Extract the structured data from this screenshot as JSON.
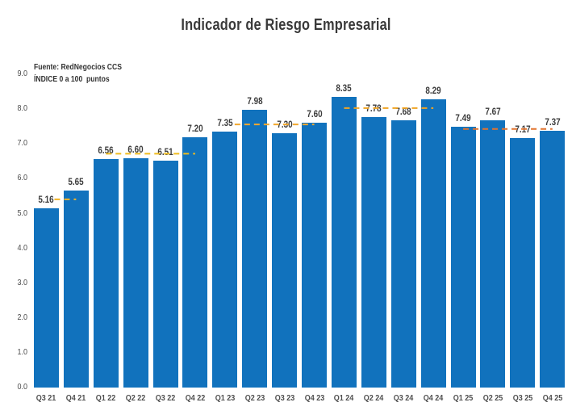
{
  "title": "Indicador de Riesgo Empresarial",
  "source_line1": "Fuente: RedNegocios CCS",
  "source_line2": "ÍNDICE 0 a 100  puntos",
  "colors": {
    "bar": "#1172bd",
    "title_text": "#3a3a3a",
    "value_label_text": "#3c3c3c",
    "axis_label_text": "#4a4a4a"
  },
  "chart_data": {
    "type": "bar",
    "title": "Indicador de Riesgo Empresarial",
    "categories": [
      "Q3 21",
      "Q4 21",
      "Q1 22",
      "Q2 22",
      "Q3 22",
      "Q4 22",
      "Q1 23",
      "Q2 23",
      "Q3 23",
      "Q4 23",
      "Q1 24",
      "Q2 24",
      "Q3 24",
      "Q4 24",
      "Q1 25",
      "Q2 25",
      "Q3 25",
      "Q4 25"
    ],
    "values": [
      5.16,
      5.65,
      6.56,
      6.6,
      6.51,
      7.2,
      7.35,
      7.98,
      7.3,
      7.6,
      8.35,
      7.78,
      7.68,
      8.29,
      7.49,
      7.67,
      7.17,
      7.37
    ],
    "data_labels": [
      "5.16",
      "5.65",
      "6.56",
      "6.60",
      "6.51",
      "7.20",
      "7.35",
      "7.98",
      "7.30",
      "7.60",
      "8.35",
      "7.78",
      "7.68",
      "8.29",
      "7.49",
      "7.67",
      "7.17",
      "7.37"
    ],
    "xlabel": "",
    "ylabel": "",
    "ylim": [
      0,
      9
    ],
    "ytick_labels": [
      "0.0",
      "1.0",
      "2.0",
      "3.0",
      "4.0",
      "5.0",
      "6.0",
      "7.0",
      "8.0",
      "9.0"
    ],
    "grid": false,
    "legend": "none",
    "bar_color": "#1172bd",
    "trend_segments": [
      {
        "year": "2021",
        "value": 5.41,
        "from_bar": 0,
        "to_bar": 1,
        "color": "#f2b424"
      },
      {
        "year": "2022",
        "value": 6.72,
        "from_bar": 2,
        "to_bar": 5,
        "color": "#f0bc1e"
      },
      {
        "year": "2023",
        "value": 7.56,
        "from_bar": 6,
        "to_bar": 9,
        "color": "#f2a82e"
      },
      {
        "year": "2024",
        "value": 8.03,
        "from_bar": 10,
        "to_bar": 13,
        "color": "#f0a424"
      },
      {
        "year": "2025",
        "value": 7.43,
        "from_bar": 14,
        "to_bar": 17,
        "color": "#e2732e"
      }
    ]
  }
}
